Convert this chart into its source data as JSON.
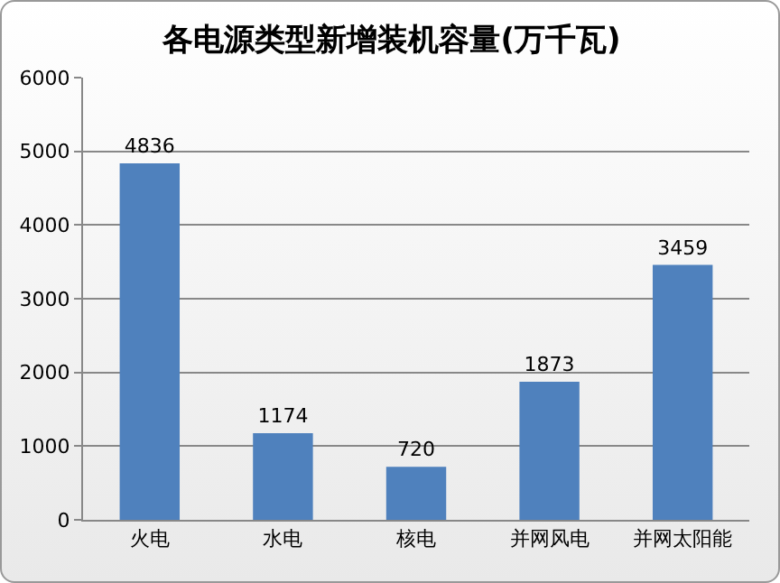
{
  "chart_data": {
    "type": "bar",
    "title": "各电源类型新增装机容量(万千瓦)",
    "categories": [
      "火电",
      "水电",
      "核电",
      "并网风电",
      "并网太阳能"
    ],
    "values": [
      4836,
      1174,
      720,
      1873,
      3459
    ],
    "color": "#4f81bd",
    "ylim": [
      0,
      6000
    ],
    "yticks": [
      0,
      1000,
      2000,
      3000,
      4000,
      5000,
      6000
    ],
    "grid": "y",
    "data_labels": true,
    "legend": false
  }
}
